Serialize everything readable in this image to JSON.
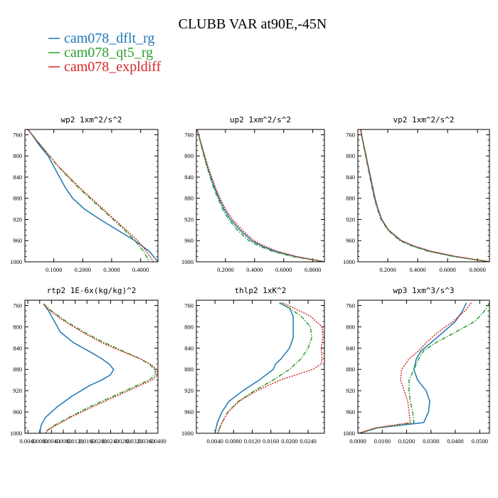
{
  "title": "CLUBB VAR at90E,-45N",
  "legend": [
    {
      "label": "cam078_dflt_rg",
      "color": "#1f77b4",
      "dash": "solid"
    },
    {
      "label": "cam078_qt5_rg",
      "color": "#2ca02c",
      "dash": "dashdot"
    },
    {
      "label": "cam078_expldiff",
      "color": "#d62728",
      "dash": "dotted"
    }
  ],
  "chart_data": [
    {
      "type": "line",
      "title": "wp2  1xm^2/s^2",
      "xlim": [
        0,
        0.46
      ],
      "ylim": [
        1000,
        750
      ],
      "xticks": [
        0.1,
        0.2,
        0.3,
        0.4
      ],
      "xtick_labels": [
        "0.1000",
        "0.2000",
        "0.3000",
        "0.4000"
      ],
      "yticks": [
        760,
        800,
        840,
        880,
        920,
        960,
        1000
      ],
      "y": [
        750,
        760,
        780,
        800,
        820,
        840,
        860,
        880,
        900,
        920,
        940,
        960,
        980,
        1000
      ],
      "series": [
        {
          "name": "cam078_dflt_rg",
          "values": [
            0.01,
            0.025,
            0.05,
            0.08,
            0.1,
            0.12,
            0.14,
            0.165,
            0.205,
            0.26,
            0.32,
            0.38,
            0.43,
            0.46
          ]
        },
        {
          "name": "cam078_qt5_rg",
          "values": [
            0.01,
            0.025,
            0.055,
            0.085,
            0.115,
            0.15,
            0.185,
            0.225,
            0.265,
            0.305,
            0.345,
            0.38,
            0.41,
            0.43
          ]
        },
        {
          "name": "cam078_expldiff",
          "values": [
            0.01,
            0.025,
            0.055,
            0.085,
            0.117,
            0.153,
            0.19,
            0.23,
            0.27,
            0.31,
            0.35,
            0.39,
            0.42,
            0.445
          ]
        }
      ]
    },
    {
      "type": "line",
      "title": "up2  1xm^2/s^2",
      "xlim": [
        0,
        0.88
      ],
      "ylim": [
        1000,
        750
      ],
      "xticks": [
        0.2,
        0.4,
        0.6,
        0.8
      ],
      "xtick_labels": [
        "0.2000",
        "0.4000",
        "0.6000",
        "0.8000"
      ],
      "yticks": [
        760,
        800,
        840,
        880,
        920,
        960,
        1000
      ],
      "y": [
        750,
        760,
        780,
        800,
        820,
        840,
        860,
        880,
        900,
        920,
        940,
        960,
        970,
        980,
        990,
        1000
      ],
      "series": [
        {
          "name": "cam078_dflt_rg",
          "values": [
            0.005,
            0.015,
            0.035,
            0.055,
            0.075,
            0.1,
            0.125,
            0.155,
            0.19,
            0.235,
            0.3,
            0.38,
            0.45,
            0.54,
            0.68,
            0.88
          ]
        },
        {
          "name": "cam078_qt5_rg",
          "values": [
            0.005,
            0.015,
            0.033,
            0.052,
            0.072,
            0.095,
            0.118,
            0.148,
            0.18,
            0.222,
            0.282,
            0.36,
            0.43,
            0.52,
            0.66,
            0.88
          ]
        },
        {
          "name": "cam078_expldiff",
          "values": [
            0.005,
            0.016,
            0.037,
            0.058,
            0.08,
            0.105,
            0.132,
            0.163,
            0.2,
            0.248,
            0.315,
            0.395,
            0.465,
            0.555,
            0.69,
            0.88
          ]
        }
      ]
    },
    {
      "type": "line",
      "title": "vp2  1xm^2/s^2",
      "xlim": [
        0,
        0.88
      ],
      "ylim": [
        1000,
        750
      ],
      "xticks": [
        0.2,
        0.4,
        0.6,
        0.8
      ],
      "xtick_labels": [
        "0.2000",
        "0.4000",
        "0.6000",
        "0.8000"
      ],
      "yticks": [
        760,
        800,
        840,
        880,
        920,
        960,
        1000
      ],
      "y": [
        750,
        760,
        780,
        800,
        820,
        840,
        860,
        880,
        900,
        920,
        940,
        960,
        970,
        980,
        990,
        1000
      ],
      "series": [
        {
          "name": "cam078_dflt_rg",
          "values": [
            0.02,
            0.025,
            0.04,
            0.055,
            0.07,
            0.085,
            0.1,
            0.115,
            0.135,
            0.16,
            0.205,
            0.29,
            0.37,
            0.48,
            0.65,
            0.88
          ]
        },
        {
          "name": "cam078_qt5_rg",
          "values": [
            0.02,
            0.025,
            0.038,
            0.052,
            0.066,
            0.08,
            0.095,
            0.11,
            0.13,
            0.155,
            0.2,
            0.28,
            0.36,
            0.47,
            0.64,
            0.88
          ]
        },
        {
          "name": "cam078_expldiff",
          "values": [
            0.018,
            0.024,
            0.039,
            0.054,
            0.068,
            0.083,
            0.098,
            0.113,
            0.133,
            0.158,
            0.205,
            0.29,
            0.375,
            0.49,
            0.66,
            0.88
          ]
        }
      ]
    },
    {
      "type": "line",
      "title": "rtp2  1E-6x(kg/kg)^2",
      "xlim": [
        -0.005,
        0.04
      ],
      "ylim": [
        1000,
        750
      ],
      "xticks": [
        -0.004,
        0.0,
        0.004,
        0.008,
        0.012,
        0.016,
        0.02,
        0.024,
        0.028,
        0.032,
        0.036,
        0.04
      ],
      "xtick_labels": [
        "0.0040",
        "0.0000",
        "0.0040",
        "0.0080",
        "0.0120",
        "0.0160",
        "0.0200",
        "0.0240",
        "0.0280",
        "0.0320",
        "0.0360",
        "0.0400"
      ],
      "yticks": [
        760,
        800,
        840,
        880,
        920,
        960,
        1000
      ],
      "y": [
        757,
        770,
        790,
        810,
        830,
        850,
        860,
        870,
        880,
        890,
        900,
        910,
        930,
        950,
        970,
        985,
        995,
        1000
      ],
      "series": [
        {
          "name": "cam078_dflt_rg",
          "values": [
            0.0013,
            0.003,
            0.005,
            0.007,
            0.0115,
            0.018,
            0.021,
            0.0235,
            0.025,
            0.024,
            0.021,
            0.017,
            0.011,
            0.006,
            0.002,
            0.0005,
            0.0002,
            0.0002
          ]
        },
        {
          "name": "cam078_qt5_rg",
          "values": [
            0.0013,
            0.004,
            0.009,
            0.015,
            0.022,
            0.03,
            0.034,
            0.037,
            0.039,
            0.0392,
            0.037,
            0.033,
            0.025,
            0.017,
            0.01,
            0.005,
            0.0025,
            0.002
          ]
        },
        {
          "name": "cam078_expldiff",
          "values": [
            0.0013,
            0.0035,
            0.0085,
            0.0145,
            0.021,
            0.0295,
            0.034,
            0.0375,
            0.0395,
            0.04,
            0.038,
            0.034,
            0.026,
            0.018,
            0.0105,
            0.0055,
            0.0025,
            0.002
          ]
        }
      ]
    },
    {
      "type": "line",
      "title": "thlp2  1xK^2",
      "xlim": [
        0,
        0.0275
      ],
      "ylim": [
        1000,
        750
      ],
      "xticks": [
        0.004,
        0.008,
        0.012,
        0.016,
        0.02,
        0.024
      ],
      "xtick_labels": [
        "0.0040",
        "0.0080",
        "0.0120",
        "0.0160",
        "0.0200",
        "0.0240"
      ],
      "yticks": [
        760,
        800,
        840,
        880,
        920,
        960,
        1000
      ],
      "y": [
        755,
        765,
        780,
        800,
        820,
        840,
        860,
        870,
        880,
        900,
        920,
        940,
        960,
        980,
        1000
      ],
      "series": [
        {
          "name": "cam078_dflt_rg",
          "values": [
            0.0178,
            0.02,
            0.0208,
            0.0208,
            0.0208,
            0.02,
            0.0182,
            0.017,
            0.0165,
            0.0135,
            0.01,
            0.007,
            0.0055,
            0.0045,
            0.004
          ]
        },
        {
          "name": "cam078_qt5_rg",
          "values": [
            0.018,
            0.02,
            0.0225,
            0.0245,
            0.0248,
            0.024,
            0.0225,
            0.0212,
            0.02,
            0.0165,
            0.0125,
            0.009,
            0.0068,
            0.0055,
            0.0045
          ]
        },
        {
          "name": "cam078_expldiff",
          "values": [
            0.0185,
            0.021,
            0.0245,
            0.027,
            0.0272,
            0.0268,
            0.027,
            0.0268,
            0.025,
            0.018,
            0.013,
            0.0092,
            0.0068,
            0.0055,
            0.0046
          ]
        }
      ]
    },
    {
      "type": "line",
      "title": "wp3  1xm^3/s^3",
      "xlim": [
        0,
        0.054
      ],
      "ylim": [
        1000,
        750
      ],
      "xticks": [
        0.0,
        0.01,
        0.02,
        0.03,
        0.04,
        0.05
      ],
      "xtick_labels": [
        "0.0000",
        "0.0100",
        "0.0200",
        "0.0300",
        "0.0400",
        "0.0500"
      ],
      "yticks": [
        760,
        800,
        840,
        880,
        920,
        960,
        1000
      ],
      "y": [
        755,
        770,
        790,
        810,
        830,
        845,
        860,
        880,
        900,
        920,
        940,
        960,
        980,
        990,
        1000
      ],
      "series": [
        {
          "name": "cam078_dflt_rg",
          "values": [
            0.0445,
            0.043,
            0.04,
            0.035,
            0.03,
            0.026,
            0.024,
            0.023,
            0.0245,
            0.028,
            0.0295,
            0.029,
            0.027,
            0.008,
            0.0005
          ]
        },
        {
          "name": "cam078_qt5_rg",
          "values": [
            0.054,
            0.052,
            0.048,
            0.04,
            0.032,
            0.027,
            0.025,
            0.023,
            0.021,
            0.021,
            0.0215,
            0.0225,
            0.023,
            0.008,
            0.0005
          ]
        },
        {
          "name": "cam078_expldiff",
          "values": [
            0.0465,
            0.044,
            0.039,
            0.033,
            0.028,
            0.025,
            0.021,
            0.018,
            0.0175,
            0.019,
            0.0205,
            0.021,
            0.0215,
            0.007,
            0.0005
          ]
        }
      ]
    }
  ]
}
